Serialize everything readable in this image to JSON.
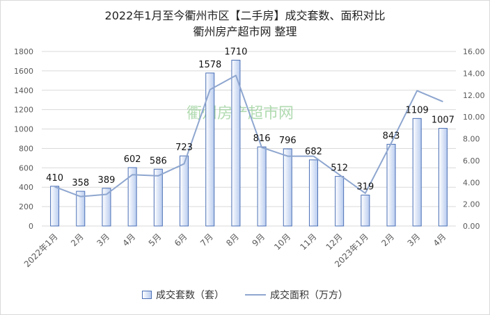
{
  "chart_data": {
    "type": "bar",
    "title": "2022年1月至今衢州市区【二手房】成交套数、面积对比",
    "subtitle": "衢州房产超市网 整理",
    "watermark": "衢州房产超市网",
    "categories": [
      "2022年1月",
      "2月",
      "3月",
      "4月",
      "5月",
      "6月",
      "7月",
      "8月",
      "9月",
      "10月",
      "11月",
      "12月",
      "2023年1月",
      "2月",
      "3月",
      "4月"
    ],
    "series": [
      {
        "name": "成交套数（套）",
        "type": "bar",
        "axis": "left",
        "values": [
          410,
          358,
          389,
          602,
          586,
          723,
          1578,
          1710,
          816,
          796,
          682,
          512,
          319,
          843,
          1109,
          1007
        ],
        "labels": [
          "410",
          "358",
          "389",
          "602",
          "586",
          "723",
          "1578",
          "1710",
          "816",
          "796",
          "682",
          "512",
          "319",
          "843",
          "1109",
          "1007"
        ]
      },
      {
        "name": "成交面积（万方）",
        "type": "line",
        "axis": "right",
        "values": [
          3.6,
          2.7,
          2.9,
          4.7,
          4.6,
          5.7,
          12.5,
          13.8,
          7.2,
          6.4,
          6.4,
          4.7,
          3.0,
          7.6,
          12.4,
          11.4
        ]
      }
    ],
    "y_left": {
      "ylim": [
        0,
        1800
      ],
      "ticks": [
        "0",
        "200",
        "400",
        "600",
        "800",
        "1000",
        "1200",
        "1400",
        "1600",
        "1800"
      ]
    },
    "y_right": {
      "ylim": [
        0,
        16
      ],
      "ticks": [
        "0.00",
        "2.00",
        "4.00",
        "6.00",
        "8.00",
        "10.00",
        "12.00",
        "14.00",
        "16.00"
      ]
    },
    "grid": true,
    "legend_position": "bottom",
    "colors": {
      "bar_edge": "#4a6fb5",
      "bar_fill_dark": "#b9ccef",
      "bar_fill_light": "#ffffff",
      "line": "#8ea6cf",
      "grid": "#d9d9d9",
      "watermark": "#7ec47e"
    }
  }
}
